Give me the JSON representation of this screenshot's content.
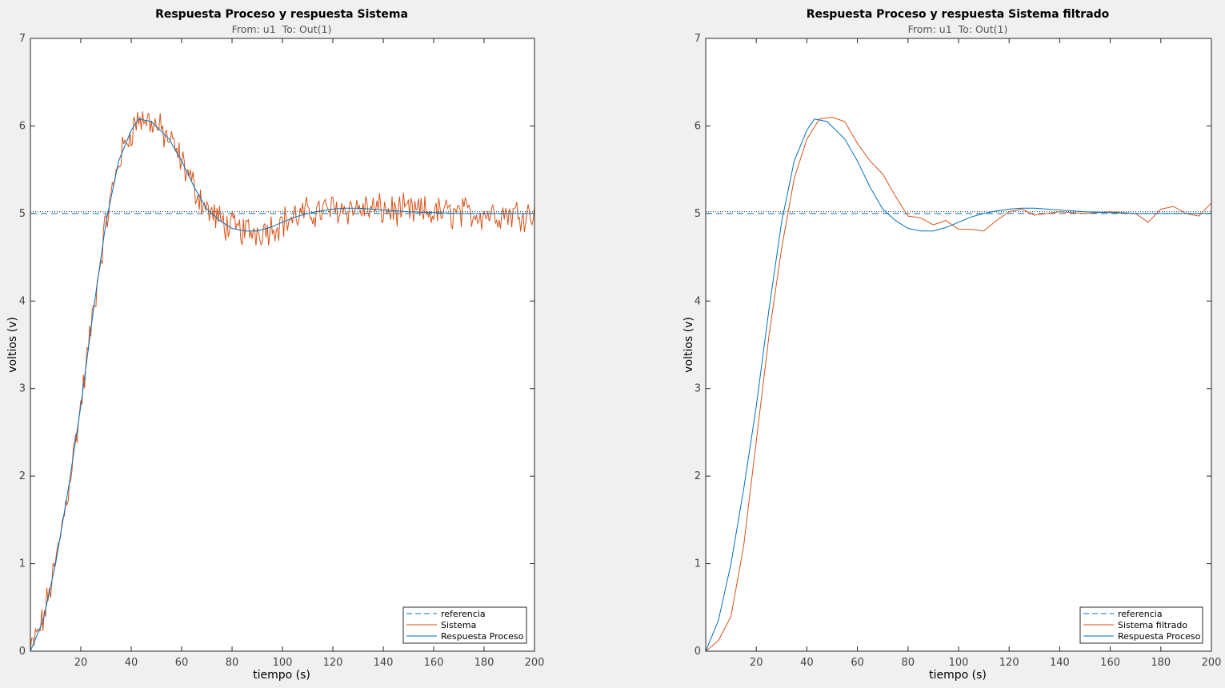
{
  "colors": {
    "blue": "#0072BD",
    "orange": "#D95319",
    "axes_bg": "#ffffff",
    "figure_bg": "#f0f0f0"
  },
  "chart_data": [
    {
      "type": "line",
      "title": "Respuesta Proceso y respuesta Sistema",
      "subtitle": "From: u1  To: Out(1)",
      "xlabel": "tiempo (s)",
      "ylabel": "voltios (v)",
      "xlim": [
        0,
        200
      ],
      "ylim": [
        0,
        7
      ],
      "xticks": [
        20,
        40,
        60,
        80,
        100,
        120,
        140,
        160,
        180,
        200
      ],
      "yticks": [
        0,
        1,
        2,
        3,
        4,
        5,
        6,
        7
      ],
      "reference_dotted": 5.02,
      "legend_position": "bottom-right",
      "legend": [
        "referencia",
        "Sistema",
        "Respuesta Proceso"
      ],
      "series": [
        {
          "name": "referencia",
          "style": "dashed",
          "color": "#0072BD",
          "x": [
            0,
            200
          ],
          "y": [
            5,
            5
          ]
        },
        {
          "name": "Sistema",
          "style": "noisy",
          "color": "#D95319",
          "noise": 0.15,
          "x": [
            0,
            5,
            10,
            15,
            20,
            25,
            30,
            35,
            40,
            43,
            48,
            55,
            60,
            65,
            70,
            75,
            80,
            85,
            90,
            95,
            100,
            105,
            110,
            115,
            120,
            125,
            130,
            135,
            140,
            150,
            160,
            170,
            180,
            190,
            200
          ],
          "y": [
            0.0,
            0.35,
            1.0,
            1.85,
            2.8,
            3.9,
            4.9,
            5.6,
            5.95,
            6.08,
            6.05,
            5.85,
            5.6,
            5.3,
            5.05,
            4.92,
            4.83,
            4.8,
            4.8,
            4.84,
            4.9,
            4.96,
            5.0,
            5.03,
            5.05,
            5.06,
            5.06,
            5.05,
            5.04,
            5.02,
            5.01,
            5.0,
            5.0,
            5.0,
            5.0
          ]
        },
        {
          "name": "Respuesta Proceso",
          "style": "solid",
          "color": "#0072BD",
          "x": [
            0,
            5,
            10,
            15,
            20,
            25,
            30,
            35,
            40,
            43,
            48,
            55,
            60,
            65,
            70,
            75,
            80,
            85,
            90,
            95,
            100,
            105,
            110,
            115,
            120,
            125,
            130,
            135,
            140,
            150,
            160,
            170,
            180,
            190,
            200
          ],
          "y": [
            0.0,
            0.35,
            1.0,
            1.85,
            2.8,
            3.9,
            4.9,
            5.6,
            5.95,
            6.08,
            6.05,
            5.85,
            5.6,
            5.3,
            5.05,
            4.92,
            4.83,
            4.8,
            4.8,
            4.84,
            4.9,
            4.96,
            5.0,
            5.03,
            5.05,
            5.06,
            5.06,
            5.05,
            5.04,
            5.02,
            5.01,
            5.0,
            5.0,
            5.0,
            5.0
          ]
        }
      ]
    },
    {
      "type": "line",
      "title": "Respuesta Proceso y respuesta Sistema filtrado",
      "subtitle": "From: u1  To: Out(1)",
      "xlabel": "tiempo (s)",
      "ylabel": "voltios (v)",
      "xlim": [
        0,
        200
      ],
      "ylim": [
        0,
        7
      ],
      "xticks": [
        20,
        40,
        60,
        80,
        100,
        120,
        140,
        160,
        180,
        200
      ],
      "yticks": [
        0,
        1,
        2,
        3,
        4,
        5,
        6,
        7
      ],
      "reference_dotted": 5.02,
      "legend_position": "bottom-right",
      "legend": [
        "referencia",
        "Sistema filtrado",
        "Respuesta Proceso"
      ],
      "series": [
        {
          "name": "referencia",
          "style": "dashed",
          "color": "#0072BD",
          "x": [
            0,
            200
          ],
          "y": [
            5,
            5
          ]
        },
        {
          "name": "Sistema filtrado",
          "style": "solid",
          "color": "#D95319",
          "x": [
            0,
            5,
            10,
            15,
            20,
            25,
            30,
            35,
            40,
            45,
            50,
            55,
            60,
            65,
            70,
            75,
            80,
            85,
            90,
            95,
            100,
            105,
            110,
            115,
            120,
            125,
            130,
            135,
            140,
            150,
            160,
            170,
            175,
            180,
            185,
            190,
            195,
            200
          ],
          "y": [
            0.0,
            0.12,
            0.4,
            1.2,
            2.4,
            3.6,
            4.6,
            5.4,
            5.85,
            6.08,
            6.1,
            6.05,
            5.8,
            5.6,
            5.45,
            5.2,
            4.97,
            4.95,
            4.87,
            4.92,
            4.82,
            4.82,
            4.8,
            4.92,
            5.02,
            5.05,
            4.98,
            5.0,
            5.02,
            5.0,
            5.02,
            5.0,
            4.9,
            5.05,
            5.08,
            5.0,
            4.97,
            5.12
          ]
        },
        {
          "name": "Respuesta Proceso",
          "style": "solid",
          "color": "#0072BD",
          "x": [
            0,
            5,
            10,
            15,
            20,
            25,
            30,
            35,
            40,
            43,
            48,
            55,
            60,
            65,
            70,
            75,
            80,
            85,
            90,
            95,
            100,
            105,
            110,
            115,
            120,
            125,
            130,
            135,
            140,
            150,
            160,
            170,
            180,
            190,
            200
          ],
          "y": [
            0.0,
            0.35,
            1.0,
            1.85,
            2.8,
            3.9,
            4.9,
            5.6,
            5.95,
            6.08,
            6.05,
            5.85,
            5.6,
            5.3,
            5.05,
            4.92,
            4.83,
            4.8,
            4.8,
            4.84,
            4.9,
            4.96,
            5.0,
            5.03,
            5.05,
            5.06,
            5.06,
            5.05,
            5.04,
            5.02,
            5.01,
            5.0,
            5.0,
            5.0,
            5.0
          ]
        }
      ]
    }
  ]
}
